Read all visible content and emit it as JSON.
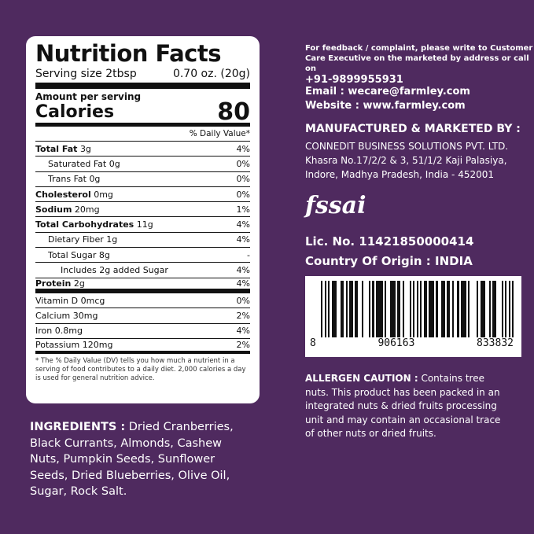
{
  "nutrition": {
    "title": "Nutrition Facts",
    "serving_label": "Serving size 2tbsp",
    "serving_value": "0.70 oz. (20g)",
    "amount_per_serving": "Amount per serving",
    "calories_label": "Calories",
    "calories_value": "80",
    "dv_header": "% Daily Value*",
    "rows": [
      {
        "name": "Total Fat",
        "amount": "3g",
        "dv": "4%",
        "bold": true
      },
      {
        "name": "Saturated Fat",
        "amount": "0g",
        "dv": "0%",
        "indent": 1
      },
      {
        "name": "Trans Fat",
        "amount": "0g",
        "dv": "0%",
        "indent": 1
      },
      {
        "name": "Cholesterol",
        "amount": "0mg",
        "dv": "0%",
        "bold": true
      },
      {
        "name": "Sodium",
        "amount": "20mg",
        "dv": "1%",
        "bold": true
      },
      {
        "name": "Total Carbohydrates",
        "amount": "11g",
        "dv": "4%",
        "bold": true
      },
      {
        "name": "Dietary Fiber",
        "amount": "1g",
        "dv": "4%",
        "indent": 1
      },
      {
        "name": "Total Sugar",
        "amount": "8g",
        "dv": "-",
        "indent": 1
      },
      {
        "name": "Includes 2g added Sugar",
        "amount": "",
        "dv": "4%",
        "indent": 2
      },
      {
        "name": "Protein",
        "amount": "2g",
        "dv": "4%",
        "bold": true,
        "thick": true
      },
      {
        "name": "Vitamin D",
        "amount": "0mcg",
        "dv": "0%"
      },
      {
        "name": "Calcium",
        "amount": "30mg",
        "dv": "2%"
      },
      {
        "name": "Iron",
        "amount": "0.8mg",
        "dv": "4%"
      },
      {
        "name": "Potassium",
        "amount": "120mg",
        "dv": "2%",
        "last": true
      }
    ],
    "footnote": "* The % Daily Value (DV) tells you how much a nutrient in a serving of food contributes to a daily diet. 2,000 calories a day is used for general nutrition advice."
  },
  "ingredients": {
    "label": "INGREDIENTS :",
    "text": " Dried Cranberries, Black Currants, Almonds, Cashew Nuts, Pumpkin Seeds, Sunflower Seeds, Dried Blueberries, Olive Oil, Sugar, Rock Salt."
  },
  "contact": {
    "feedback": "For feedback / complaint,  please write to Customer Care Executive on the marketed by address or call on",
    "phone": "+91-9899955931",
    "email": "Email : wecare@farmley.com",
    "website": "Website : www.farmley.com"
  },
  "manufacturer": {
    "heading": "MANUFACTURED & MARKETED BY :",
    "name": "CONNEDIT BUSINESS SOLUTIONS PVT. LTD.",
    "address1": "Khasra No.17/2/2 & 3, 51/1/2 Kaji Palasiya,",
    "address2": "Indore, Madhya Pradesh, India - 452001"
  },
  "fssai_logo": "fssai",
  "license": "Lic. No.  11421850000414",
  "origin": "Country Of Origin : INDIA",
  "barcode": {
    "digits": [
      "8",
      "906163",
      "833832"
    ]
  },
  "allergen": {
    "label": "ALLERGEN CAUTION :",
    "text": " Contains tree nuts. This product has been packed in an integrated nuts & dried fruits processing unit and may contain an occasional trace of other nuts or dried fruits."
  },
  "colors": {
    "background": "#4f2a5f"
  }
}
